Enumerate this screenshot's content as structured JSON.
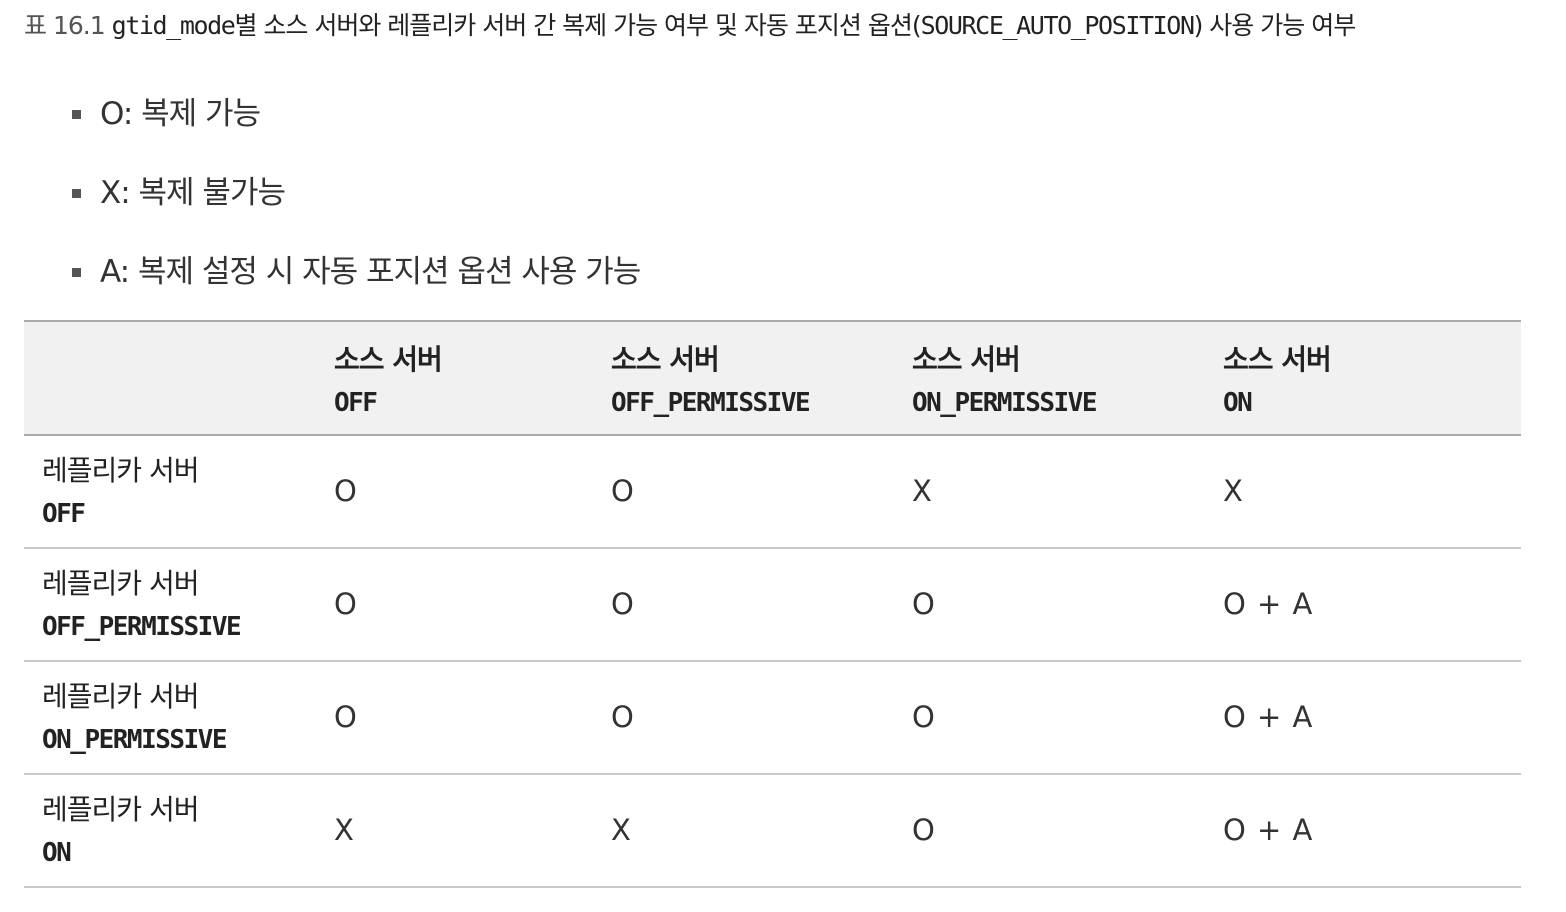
{
  "caption": {
    "number": "표 16.1",
    "prefix": "gtid_mode",
    "middle": "별 소스 서버와 레플리카 서버 간 복제 가능 여부 및 자동 포지션 옵션(",
    "option": "SOURCE_AUTO_POSITION",
    "suffix": ") 사용 가능 여부"
  },
  "legend": [
    "O: 복제 가능",
    "X: 복제 불가능",
    "A: 복제 설정 시 자동 포지션 옵션 사용 가능"
  ],
  "table": {
    "columns": [
      {
        "label": "소스 서버",
        "mode": "OFF"
      },
      {
        "label": "소스 서버",
        "mode": "OFF_PERMISSIVE"
      },
      {
        "label": "소스 서버",
        "mode": "ON_PERMISSIVE"
      },
      {
        "label": "소스 서버",
        "mode": "ON"
      }
    ],
    "rows": [
      {
        "label": "레플리카 서버",
        "mode": "OFF",
        "cells": [
          "O",
          "O",
          "X",
          "X"
        ]
      },
      {
        "label": "레플리카 서버",
        "mode": "OFF_PERMISSIVE",
        "cells": [
          "O",
          "O",
          "O",
          "O + A"
        ]
      },
      {
        "label": "레플리카 서버",
        "mode": "ON_PERMISSIVE",
        "cells": [
          "O",
          "O",
          "O",
          "O + A"
        ]
      },
      {
        "label": "레플리카 서버",
        "mode": "ON",
        "cells": [
          "X",
          "X",
          "O",
          "O + A"
        ]
      }
    ]
  }
}
